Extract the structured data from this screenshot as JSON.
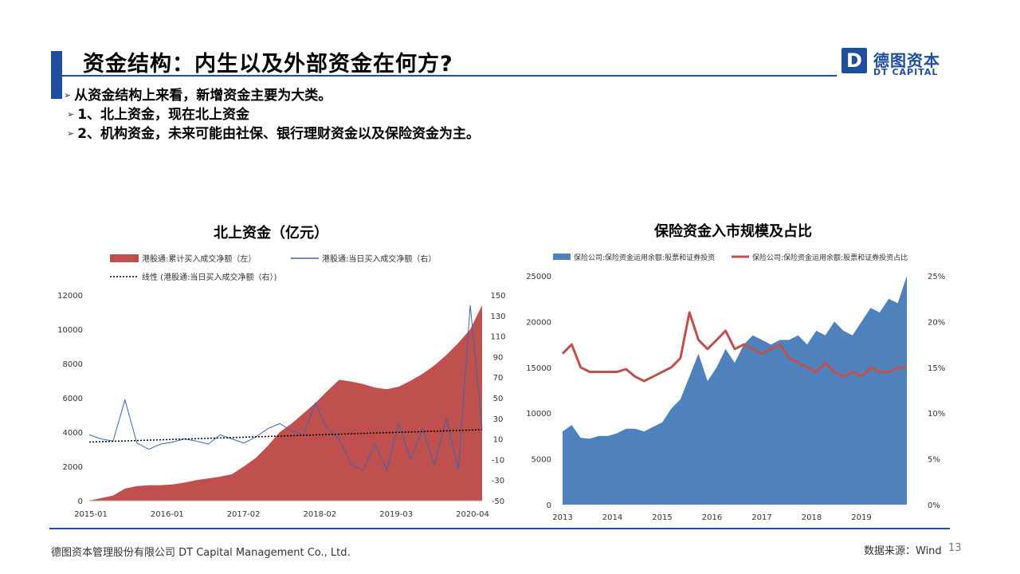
{
  "header": {
    "title": "资金结构：内生以及外部资金在何方?"
  },
  "logo": {
    "mark": "D",
    "cn": "德图资本",
    "en": "DT CAPITAL"
  },
  "bullets": [
    "从资金结构上来看，新增资金主要为大类。",
    "1、北上资金，现在北上资金",
    "2、机构资金，未来可能由社保、银行理财资金以及保险资金为主。"
  ],
  "chart_data": [
    {
      "type": "area",
      "title": "北上资金（亿元）",
      "legend": [
        "港股通:累计买入成交净额（左）",
        "港股通:当日买入成交净额（右）",
        "线性 (港股通:当日买入成交净额（右）)"
      ],
      "x_ticks": [
        "2015-01",
        "2016-01",
        "2017-02",
        "2018-02",
        "2019-03",
        "2020-04"
      ],
      "y_left_ticks": [
        "0",
        "2000",
        "4000",
        "6000",
        "8000",
        "10000",
        "12000"
      ],
      "y_right_ticks": [
        "-50",
        "-30",
        "-10",
        "10",
        "30",
        "50",
        "70",
        "90",
        "110",
        "130",
        "150"
      ],
      "ylim_left": [
        0,
        12000
      ],
      "ylim_right": [
        -50,
        150
      ],
      "series": [
        {
          "values": [
            0,
            150,
            300,
            700,
            850,
            900,
            900,
            950,
            1050,
            1200,
            1300,
            1400,
            1550,
            2000,
            2500,
            3200,
            4000,
            4500,
            5100,
            5700,
            6400,
            7050,
            6950,
            6800,
            6600,
            6500,
            6650,
            7000,
            7400,
            7900,
            8500,
            9200,
            10000,
            11400
          ]
        },
        {
          "values": [
            14,
            10,
            8,
            48,
            6,
            0,
            5,
            7,
            10,
            8,
            5,
            14,
            10,
            6,
            12,
            20,
            25,
            18,
            14,
            45,
            20,
            10,
            -15,
            -20,
            5,
            -20,
            25,
            -10,
            20,
            -15,
            30,
            -20,
            140,
            20
          ]
        },
        {
          "values": [
            7,
            19
          ]
        }
      ]
    },
    {
      "type": "area",
      "title": "保险资金入市规模及占比",
      "legend": [
        "保险公司:保险资金运用余额:股票和证券投资",
        "保险公司:保险资金运用余额:股票和证券投资占比"
      ],
      "x_ticks": [
        "2013",
        "2014",
        "2015",
        "2016",
        "2017",
        "2018",
        "2019"
      ],
      "y_left_ticks": [
        "0",
        "5000",
        "10000",
        "15000",
        "20000",
        "25000"
      ],
      "y_right_ticks": [
        "0%",
        "5%",
        "10%",
        "15%",
        "20%",
        "25%"
      ],
      "ylim_left": [
        0,
        25000
      ],
      "ylim_right": [
        0,
        25
      ],
      "series": [
        {
          "values": [
            8000,
            8700,
            7300,
            7200,
            7500,
            7500,
            7800,
            8300,
            8300,
            8000,
            8500,
            9000,
            10500,
            11500,
            14000,
            16500,
            13500,
            15000,
            17000,
            15500,
            17500,
            18500,
            18000,
            17500,
            18000,
            18000,
            18500,
            17500,
            19000,
            18500,
            20000,
            19000,
            18500,
            20000,
            21500,
            21000,
            22500,
            22000,
            25000
          ]
        },
        {
          "values": [
            16.5,
            17.5,
            15,
            14.5,
            14.5,
            14.5,
            14.5,
            14.8,
            14,
            13.5,
            14,
            14.5,
            15,
            16,
            21,
            18,
            17,
            18,
            19,
            17,
            17.5,
            17,
            16.5,
            17,
            17.5,
            16,
            15.5,
            15,
            14.5,
            15.5,
            14.5,
            14,
            14.5,
            14,
            15,
            14.5,
            14.5,
            15,
            15
          ]
        }
      ]
    }
  ],
  "footer": {
    "company": "德图资本管理股份有限公司 DT Capital Management Co., Ltd.",
    "source": "数据来源：Wind",
    "page": "13"
  },
  "colors": {
    "brand": "#1f4e9c",
    "red_area": "#c0504d",
    "blue_line": "#3a64b0",
    "blue_area": "#4f81bd"
  }
}
